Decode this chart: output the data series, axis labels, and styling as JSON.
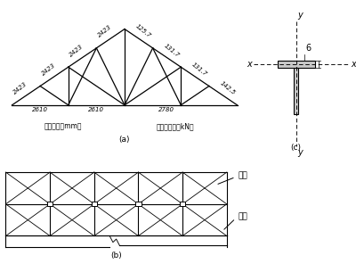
{
  "fig_width": 4.0,
  "fig_height": 2.96,
  "bg_color": "#ffffff",
  "line_color": "#000000",
  "label_a": "(a)",
  "label_b": "(b)",
  "label_c": "(c)",
  "text_left": "几何尺寸（mm）",
  "text_right": "上弦轴压力（kN）",
  "label_zj": "连接",
  "label_lt": "檐条",
  "dim_2423": "2423",
  "dim_2610_1": "2610",
  "dim_2610_2": "2610",
  "dim_2780": "2780",
  "dim_1257": "125.7",
  "dim_1317a": "131.7",
  "dim_1317b": "131.7",
  "dim_1425": "142.5",
  "dim_6": "6"
}
